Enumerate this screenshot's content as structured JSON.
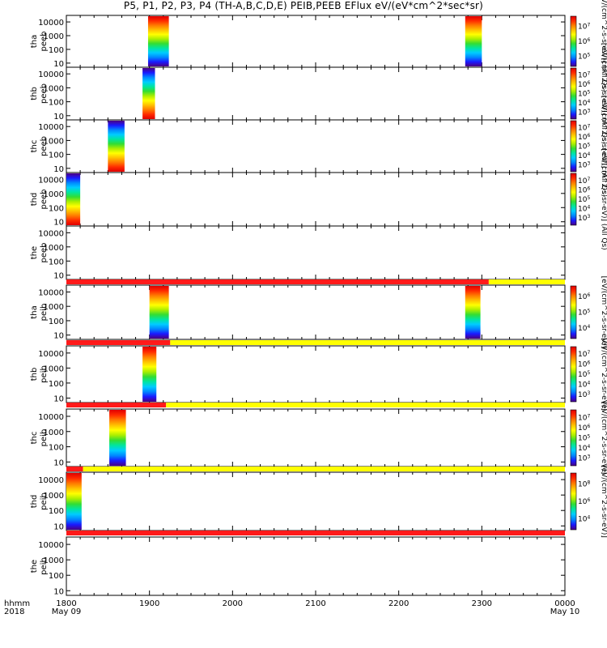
{
  "title": "P5, P1, P2, P3, P4 (TH-A,B,C,D,E) PEIB,PEEB EFlux eV/(eV*cm^2*sec*sr)",
  "bottom_labels": {
    "row1": "hhmm",
    "row2": "2018"
  },
  "colors": {
    "flag_red": "#ff1a1a",
    "flag_yellow": "#ffff00"
  },
  "chart_data": {
    "type": "heatmap",
    "x_ticks": [
      {
        "value": "1800",
        "date": "May 09"
      },
      {
        "value": "1900",
        "date": ""
      },
      {
        "value": "2000",
        "date": ""
      },
      {
        "value": "2100",
        "date": ""
      },
      {
        "value": "2200",
        "date": ""
      },
      {
        "value": "2300",
        "date": ""
      },
      {
        "value": "0000",
        "date": "May 10"
      }
    ],
    "xlim": [
      "18:00",
      "24:00"
    ],
    "y_scale": "log",
    "y_ticks": [
      "10",
      "100",
      "1000",
      "10000"
    ],
    "panels": [
      {
        "probe": "tha",
        "species": "peeb",
        "cb_exp": [
          5,
          6,
          7
        ],
        "cb_label": "[eV/(cm^2-s-sr-eV)] (All Qs)",
        "bursts": [
          {
            "start": "18:59",
            "end": "19:14"
          },
          {
            "start": "22:48",
            "end": "23:00"
          }
        ]
      },
      {
        "probe": "thb",
        "species": "peeb",
        "cb_exp": [
          3,
          4,
          5,
          6,
          7
        ],
        "cb_label": "[eV/(cm^2-s-sr-eV)] (All Qs)",
        "bursts": [
          {
            "start": "18:55",
            "end": "19:04"
          }
        ]
      },
      {
        "probe": "thc",
        "species": "peeb",
        "cb_exp": [
          3,
          4,
          5,
          6,
          7
        ],
        "cb_label": "[eV/(cm^2-s-sr-eV)] (All Qs)",
        "bursts": [
          {
            "start": "18:30",
            "end": "18:42"
          }
        ]
      },
      {
        "probe": "thd",
        "species": "peeb",
        "cb_exp": [
          3,
          4,
          5,
          6,
          7
        ],
        "cb_label": "[eV/(cm^2-s-sr-eV)] (All Qs)",
        "bursts": [
          {
            "start": "18:00",
            "end": "18:10"
          }
        ]
      },
      {
        "probe": "the",
        "species": "peeb",
        "cb_exp": [],
        "cb_label": "",
        "bursts": []
      },
      {
        "probe": "tha",
        "species": "peib",
        "cb_exp": [
          4,
          5,
          6
        ],
        "cb_label": "[eV/(cm^2-s-sr-eV)]",
        "bursts": [
          {
            "start": "19:00",
            "end": "19:14"
          },
          {
            "start": "22:48",
            "end": "22:59"
          }
        ]
      },
      {
        "probe": "thb",
        "species": "peib",
        "cb_exp": [
          3,
          4,
          5,
          6,
          7
        ],
        "cb_label": "[eV/(cm^2-s-sr-eV)]",
        "bursts": [
          {
            "start": "18:55",
            "end": "19:05"
          }
        ]
      },
      {
        "probe": "thc",
        "species": "peib",
        "cb_exp": [
          3,
          4,
          5,
          6,
          7
        ],
        "cb_label": "[eV/(cm^2-s-sr-eV)]",
        "bursts": [
          {
            "start": "18:31",
            "end": "18:43"
          }
        ]
      },
      {
        "probe": "thd",
        "species": "peib",
        "cb_exp": [
          4,
          6,
          8
        ],
        "cb_label": "[eV/(cm^2-s-sr-eV)]",
        "bursts": [
          {
            "start": "18:00",
            "end": "18:11"
          }
        ]
      },
      {
        "probe": "the",
        "species": "peib",
        "cb_exp": [],
        "cb_label": "",
        "bursts": []
      }
    ],
    "flag_bars": [
      {
        "red_until": "23:05"
      },
      {
        "red_until": "19:15"
      },
      {
        "red_until": "19:12"
      },
      {
        "red_until": "18:12"
      },
      {
        "red_until": "24:00"
      }
    ]
  }
}
